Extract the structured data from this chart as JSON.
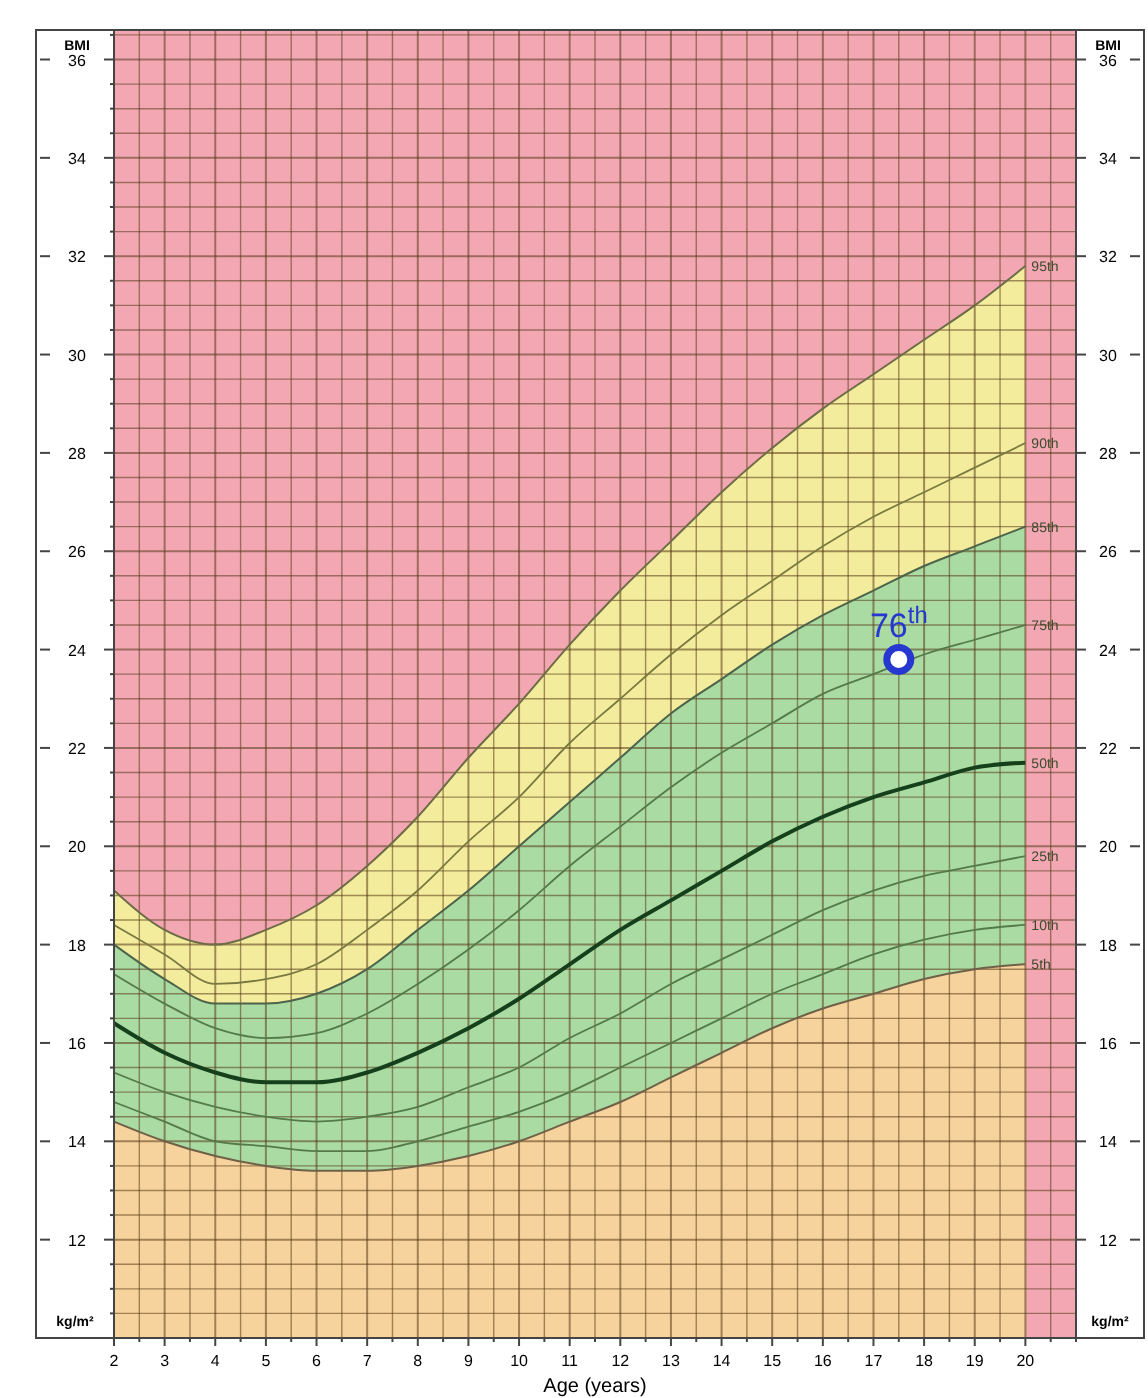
{
  "chart_data": {
    "type": "line",
    "xlabel": "Age (years)",
    "ylabel": "BMI",
    "y2label": "BMI",
    "annotations": [
      "kg/m²",
      "kg/m²",
      {
        "text": "76$^{th}$",
        "x": 17.5,
        "y": 23.8
      }
    ],
    "x": [
      2,
      3,
      4,
      5,
      6,
      7,
      8,
      9,
      10,
      11,
      12,
      13,
      14,
      15,
      16,
      17,
      18,
      19,
      20
    ],
    "xlim": [
      2,
      21
    ],
    "xticks": [
      2,
      {
        "value": 2.5,
        "label": null
      },
      3,
      {
        "value": 3.5,
        "label": null
      },
      4,
      {
        "value": 4.5,
        "label": null
      },
      5,
      {
        "value": 5.5,
        "label": null
      },
      6,
      {
        "value": 6.5,
        "label": null
      },
      7,
      {
        "value": 7.5,
        "label": null
      },
      8,
      {
        "value": 8.5,
        "label": null
      },
      9,
      {
        "value": 9.5,
        "label": null
      },
      10,
      {
        "value": 10.5,
        "label": null
      },
      11,
      {
        "value": 11.5,
        "label": null
      },
      12,
      {
        "value": 12.5,
        "label": null
      },
      13,
      {
        "value": 13.5,
        "label": null
      },
      14,
      {
        "value": 14.5,
        "label": null
      },
      15,
      {
        "value": 15.5,
        "label": null
      },
      16,
      {
        "value": 16.5,
        "label": null
      },
      17,
      {
        "value": 17.5,
        "label": null
      },
      18,
      {
        "value": 18.5,
        "label": null
      },
      19,
      {
        "value": 19.5,
        "label": null
      },
      20,
      {
        "value": 20.5,
        "label": null
      },
      {
        "value": 21,
        "label": null
      }
    ],
    "ylim": [
      10,
      36.6
    ],
    "yticks": [
      {
        "value": 10.5,
        "label": null
      },
      {
        "value": 11,
        "label": null
      },
      {
        "value": 11.5,
        "label": null
      },
      12,
      {
        "value": 12.5,
        "label": null
      },
      {
        "value": 13,
        "label": null
      },
      {
        "value": 13.5,
        "label": null
      },
      14,
      {
        "value": 14.5,
        "label": null
      },
      {
        "value": 15,
        "label": null
      },
      {
        "value": 15.5,
        "label": null
      },
      16,
      {
        "value": 16.5,
        "label": null
      },
      {
        "value": 17,
        "label": null
      },
      {
        "value": 17.5,
        "label": null
      },
      18,
      {
        "value": 18.5,
        "label": null
      },
      {
        "value": 19,
        "label": null
      },
      {
        "value": 19.5,
        "label": null
      },
      20,
      {
        "value": 20.5,
        "label": null
      },
      {
        "value": 21,
        "label": null
      },
      {
        "value": 21.5,
        "label": null
      },
      22,
      {
        "value": 22.5,
        "label": null
      },
      {
        "value": 23,
        "label": null
      },
      {
        "value": 23.5,
        "label": null
      },
      24,
      {
        "value": 24.5,
        "label": null
      },
      {
        "value": 25,
        "label": null
      },
      {
        "value": 25.5,
        "label": null
      },
      26,
      {
        "value": 26.5,
        "label": null
      },
      {
        "value": 27,
        "label": null
      },
      {
        "value": 27.5,
        "label": null
      },
      28,
      {
        "value": 28.5,
        "label": null
      },
      {
        "value": 29,
        "label": null
      },
      {
        "value": 29.5,
        "label": null
      },
      30,
      {
        "value": 30.5,
        "label": null
      },
      {
        "value": 31,
        "label": null
      },
      {
        "value": 31.5,
        "label": null
      },
      32,
      {
        "value": 32.5,
        "label": null
      },
      {
        "value": 33,
        "label": null
      },
      {
        "value": 33.5,
        "label": null
      },
      34,
      {
        "value": 34.5,
        "label": null
      },
      {
        "value": 35,
        "label": null
      },
      {
        "value": 35.5,
        "label": null
      },
      36,
      {
        "value": 36.5,
        "label": null
      }
    ],
    "y2lim": [
      10,
      36.6
    ],
    "y2ticks": [
      12,
      14,
      16,
      18,
      20,
      22,
      24,
      26,
      28,
      30,
      32,
      34,
      36
    ],
    "grid": true,
    "bands": [
      {
        "axis": "y",
        "from": 10,
        "to": 36.6,
        "color": "#f2a7b3"
      }
    ],
    "series": [
      {
        "name": "95th",
        "type": "area",
        "color": "#f2ec9c",
        "values": [
          19.1,
          18.3,
          18.0,
          18.3,
          18.8,
          19.6,
          20.6,
          21.8,
          22.9,
          24.1,
          25.2,
          26.2,
          27.2,
          28.1,
          28.9,
          29.6,
          30.3,
          31.0,
          31.8
        ]
      },
      {
        "name": "85th",
        "type": "area",
        "color": "#a9dba3",
        "values": [
          18.0,
          17.3,
          16.8,
          16.8,
          17.0,
          17.5,
          18.3,
          19.1,
          20.0,
          20.9,
          21.8,
          22.7,
          23.4,
          24.1,
          24.7,
          25.2,
          25.7,
          26.1,
          26.5
        ]
      },
      {
        "name": "5th",
        "type": "area",
        "color": "#f6d39c",
        "values": [
          14.4,
          14.0,
          13.7,
          13.5,
          13.4,
          13.4,
          13.5,
          13.7,
          14.0,
          14.4,
          14.8,
          15.3,
          15.8,
          16.3,
          16.7,
          17.0,
          17.3,
          17.5,
          17.6
        ]
      },
      {
        "name": "10th",
        "type": "line",
        "color": "#557a4a",
        "values": [
          14.8,
          14.4,
          14.0,
          13.9,
          13.8,
          13.8,
          14.0,
          14.3,
          14.6,
          15.0,
          15.5,
          16.0,
          16.5,
          17.0,
          17.4,
          17.8,
          18.1,
          18.3,
          18.4
        ]
      },
      {
        "name": "25th",
        "type": "line",
        "color": "#557a4a",
        "values": [
          15.4,
          15.0,
          14.7,
          14.5,
          14.4,
          14.5,
          14.7,
          15.1,
          15.5,
          16.1,
          16.6,
          17.2,
          17.7,
          18.2,
          18.7,
          19.1,
          19.4,
          19.6,
          19.8
        ]
      },
      {
        "name": "50th",
        "type": "line",
        "color": "#16401c",
        "values": [
          16.4,
          15.8,
          15.4,
          15.2,
          15.2,
          15.4,
          15.8,
          16.3,
          16.9,
          17.6,
          18.3,
          18.9,
          19.5,
          20.1,
          20.6,
          21.0,
          21.3,
          21.6,
          21.7
        ]
      },
      {
        "name": "75th",
        "type": "line",
        "color": "#557a4a",
        "values": [
          17.4,
          16.8,
          16.3,
          16.1,
          16.2,
          16.6,
          17.2,
          17.9,
          18.7,
          19.6,
          20.4,
          21.2,
          21.9,
          22.5,
          23.1,
          23.5,
          23.9,
          24.2,
          24.5
        ]
      },
      {
        "name": "90th",
        "type": "line",
        "color": "#7a7a40",
        "values": [
          18.4,
          17.8,
          17.2,
          17.3,
          17.6,
          18.3,
          19.1,
          20.1,
          21.0,
          22.1,
          23.0,
          23.9,
          24.7,
          25.4,
          26.1,
          26.7,
          27.2,
          27.7,
          28.2
        ]
      },
      {
        "type": "scatter",
        "marker": "circle",
        "color": "#2638d0",
        "x": [
          17.5
        ],
        "values": [
          23.8
        ]
      }
    ]
  }
}
